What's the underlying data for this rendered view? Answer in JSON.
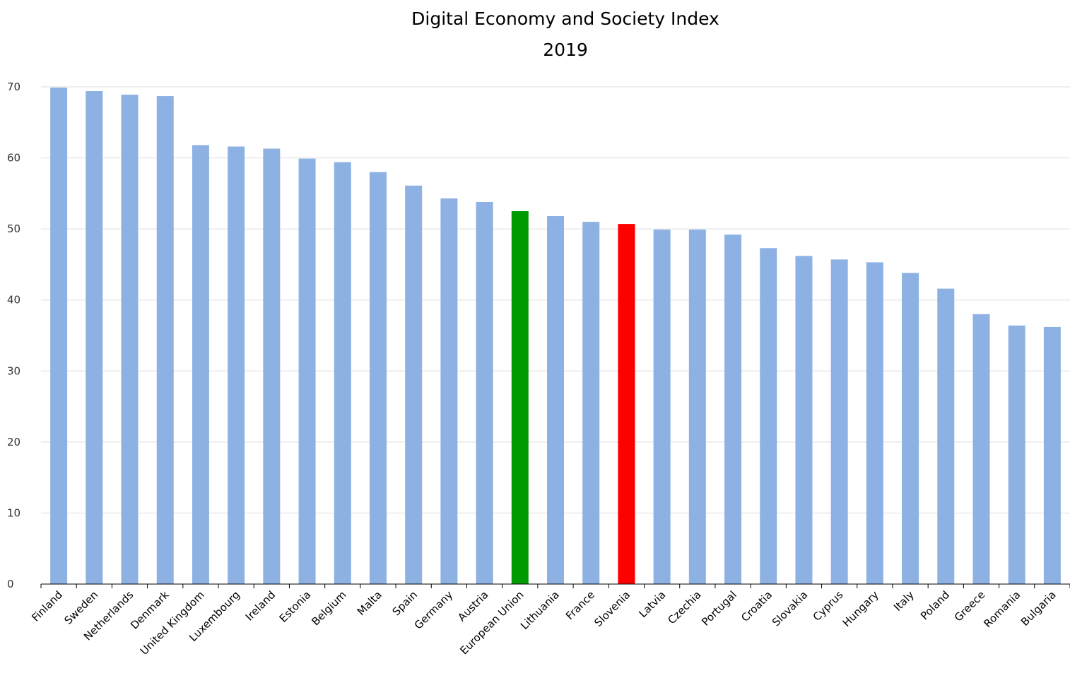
{
  "chart_data": {
    "type": "bar",
    "title": "Digital Economy and Society Index",
    "subtitle": "2019",
    "xlabel": "",
    "ylabel": "",
    "ylim": [
      0,
      70
    ],
    "yticks": [
      0,
      10,
      20,
      30,
      40,
      50,
      60,
      70
    ],
    "grid": true,
    "legend": "none",
    "categories": [
      "Finland",
      "Sweden",
      "Netherlands",
      "Denmark",
      "United Kingdom",
      "Luxembourg",
      "Ireland",
      "Estonia",
      "Belgium",
      "Malta",
      "Spain",
      "Germany",
      "Austria",
      "European Union",
      "Lithuania",
      "France",
      "Slovenia",
      "Latvia",
      "Czechia",
      "Portugal",
      "Croatia",
      "Slovakia",
      "Cyprus",
      "Hungary",
      "Italy",
      "Poland",
      "Greece",
      "Romania",
      "Bulgaria"
    ],
    "values": [
      69.9,
      69.4,
      68.9,
      68.7,
      61.8,
      61.6,
      61.3,
      59.9,
      59.4,
      58.0,
      56.1,
      54.3,
      53.8,
      52.5,
      51.8,
      51.0,
      50.7,
      49.9,
      49.9,
      49.2,
      47.3,
      46.2,
      45.7,
      45.3,
      43.8,
      41.6,
      38.0,
      36.4,
      36.2
    ]
  },
  "colors": {
    "default_bar": "#8db1e2",
    "highlight_bars": {
      "European Union": "#009900",
      "Slovenia": "#ff0000"
    },
    "grid": "#dddddd",
    "axis": "#000000"
  }
}
